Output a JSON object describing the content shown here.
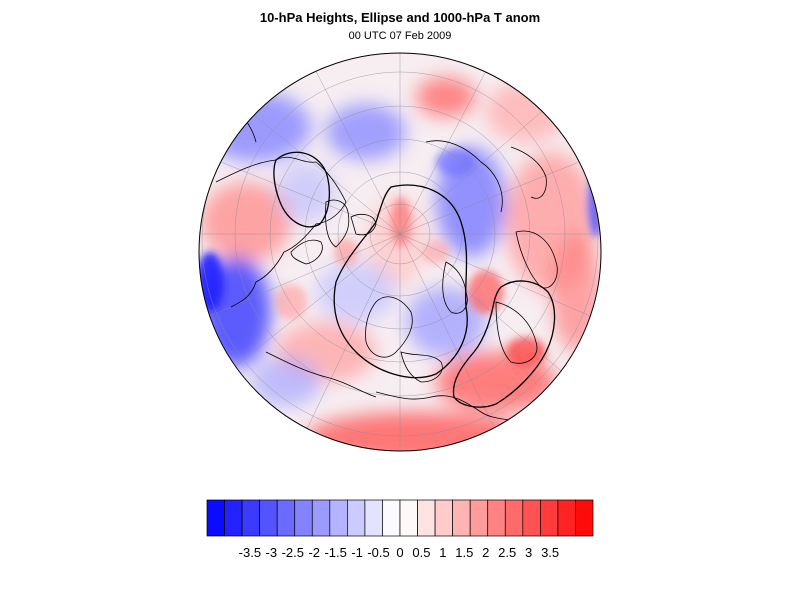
{
  "title": "10-hPa Heights, Ellipse and 1000-hPa T anom",
  "subtitle": "00 UTC 07 Feb 2009",
  "map": {
    "projection": "orthographic-north-polar",
    "layers": [
      "temperature-anomaly-shading",
      "coastlines",
      "graticule",
      "10hPa-height-contours",
      "vortex-ellipse"
    ]
  },
  "colorbar": {
    "colors": [
      "#0b0bff",
      "#2323ff",
      "#3b3bff",
      "#5353ff",
      "#6b6bff",
      "#8383ff",
      "#9b9bff",
      "#b3b3ff",
      "#cbcbff",
      "#e3e3ff",
      "#fbfbff",
      "#fff8f8",
      "#ffe2e2",
      "#ffcbcb",
      "#ffb3b3",
      "#ff9b9b",
      "#ff8383",
      "#ff6b6b",
      "#ff5353",
      "#ff3b3b",
      "#ff2323",
      "#ff0b0b"
    ],
    "tick_labels": [
      "-3.5",
      "-3",
      "-2.5",
      "-2",
      "-1.5",
      "-1",
      "-0.5",
      "0",
      "0.5",
      "1",
      "1.5",
      "2",
      "2.5",
      "3",
      "3.5"
    ],
    "tick_values": [
      -3.5,
      -3,
      -2.5,
      -2,
      -1.5,
      -1,
      -0.5,
      0,
      0.5,
      1,
      1.5,
      2,
      2.5,
      3,
      3.5
    ],
    "range": [
      -4.5,
      4.5
    ]
  }
}
